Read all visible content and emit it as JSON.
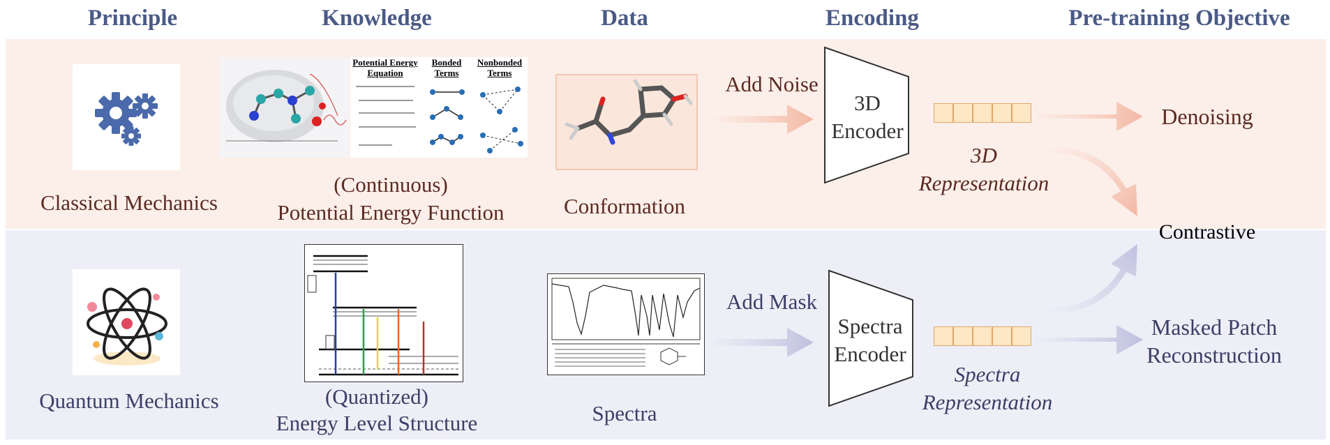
{
  "headers": {
    "principle": "Principle",
    "knowledge": "Knowledge",
    "data": "Data",
    "encoding": "Encoding",
    "objective": "Pre-training Objective"
  },
  "classical": {
    "principle": "Classical Mechanics",
    "knowledge_line1": "(Continuous)",
    "knowledge_line2": "Potential Energy Function",
    "data": "Conformation",
    "operation": "Add Noise",
    "encoder_line1": "3D",
    "encoder_line2": "Encoder",
    "representation_line1": "3D",
    "representation_line2": "Representation",
    "objective": "Denoising",
    "pe_card": {
      "title1": "Potential Energy",
      "title2": "Equation",
      "bonded1": "Bonded",
      "bonded2": "Terms",
      "nonbonded1": "Nonbonded",
      "nonbonded2": "Terms"
    }
  },
  "quantum": {
    "principle": "Quantum Mechanics",
    "knowledge_line1": "(Quantized)",
    "knowledge_line2": "Energy Level Structure",
    "data": "Spectra",
    "operation": "Add Mask",
    "encoder_line1": "Spectra",
    "encoder_line2": "Encoder",
    "representation_line1": "Spectra",
    "representation_line2": "Representation",
    "objective_line1": "Masked Patch",
    "objective_line2": "Reconstruction"
  },
  "shared_objective": "Contrastive",
  "colors": {
    "header": "#4a5a86",
    "classical_band": "#fcefe9",
    "quantum_band": "#eeeef7",
    "classical_text": "#5b2a22",
    "quantum_text": "#3b3f66",
    "token_fill": "#fde7c4",
    "token_stroke": "#e0a66a",
    "gear": "#4a6aab"
  },
  "icons": [
    "gears-icon",
    "atom-icon",
    "molecule-surface-icon",
    "molecule-icon",
    "spectrum-plot-icon",
    "jablonski-diagram-icon"
  ]
}
